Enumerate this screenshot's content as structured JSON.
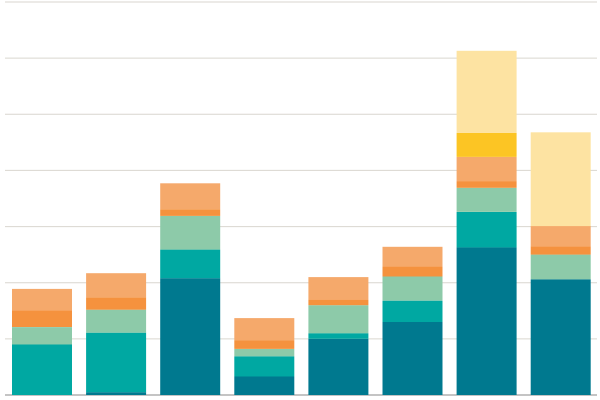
{
  "chart_data": {
    "type": "bar",
    "stacked": true,
    "categories": [
      "",
      "",
      "",
      "",
      "",
      "",
      "",
      ""
    ],
    "ylim": [
      0,
      7
    ],
    "grid": true,
    "series": [
      {
        "color": "#00798f",
        "values": [
          0.0,
          0.05,
          2.08,
          0.33,
          1.0,
          1.3,
          2.63,
          2.06
        ]
      },
      {
        "color": "#00a8a2",
        "values": [
          0.9,
          1.06,
          0.51,
          0.36,
          0.1,
          0.38,
          0.63,
          0
        ]
      },
      {
        "color": "#8dcaa9",
        "values": [
          0.31,
          0.41,
          0.6,
          0.13,
          0.5,
          0.43,
          0.43,
          0.44
        ]
      },
      {
        "color": "#f5923e",
        "values": [
          0.3,
          0.22,
          0.12,
          0.15,
          0.1,
          0.18,
          0.12,
          0.15
        ]
      },
      {
        "color": "#f5a96b",
        "values": [
          0.38,
          0.43,
          0.46,
          0.4,
          0.4,
          0.35,
          0.43,
          0.36
        ]
      },
      {
        "color": "#fcc524",
        "values": [
          0,
          0,
          0,
          0,
          0,
          0,
          0.43,
          0
        ]
      },
      {
        "color": "#fde3a2",
        "values": [
          0,
          0,
          0,
          0,
          0,
          0,
          1.46,
          1.67
        ]
      }
    ]
  }
}
